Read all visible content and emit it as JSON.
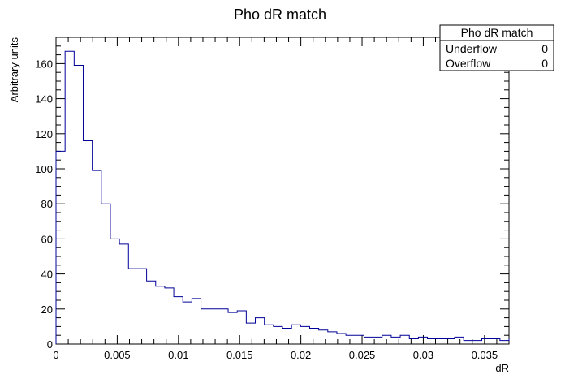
{
  "chart_data": {
    "type": "histogram",
    "title": "Pho dR match",
    "xlabel": "dR",
    "ylabel": "Arbitrary units",
    "xlim": [
      0,
      0.037
    ],
    "ylim": [
      0,
      175
    ],
    "x_ticks": [
      0,
      0.005,
      0.01,
      0.015,
      0.02,
      0.025,
      0.03,
      0.035
    ],
    "x_tick_labels": [
      "0",
      "0.005",
      "0.01",
      "0.015",
      "0.02",
      "0.025",
      "0.03",
      "0.035"
    ],
    "y_ticks": [
      0,
      20,
      40,
      60,
      80,
      100,
      120,
      140,
      160
    ],
    "y_tick_labels": [
      "0",
      "20",
      "40",
      "60",
      "80",
      "100",
      "120",
      "140",
      "160"
    ],
    "bin_width": 0.00074,
    "values": [
      110,
      167,
      159,
      116,
      99,
      80,
      60,
      57,
      43,
      43,
      36,
      33,
      32,
      27,
      24,
      26,
      20,
      20,
      20,
      18,
      19,
      12,
      15,
      11,
      10,
      9,
      11,
      10,
      9,
      8,
      7,
      6,
      5,
      5,
      4,
      4,
      5,
      4,
      5,
      3,
      4,
      3,
      3,
      3,
      4,
      2,
      2,
      3,
      3,
      2,
      2,
      3,
      2
    ],
    "line_color": "#000099",
    "stats_box": {
      "title": "Pho dR match",
      "rows": [
        {
          "label": "Underflow",
          "value": "0"
        },
        {
          "label": "Overflow",
          "value": "0"
        }
      ]
    }
  }
}
